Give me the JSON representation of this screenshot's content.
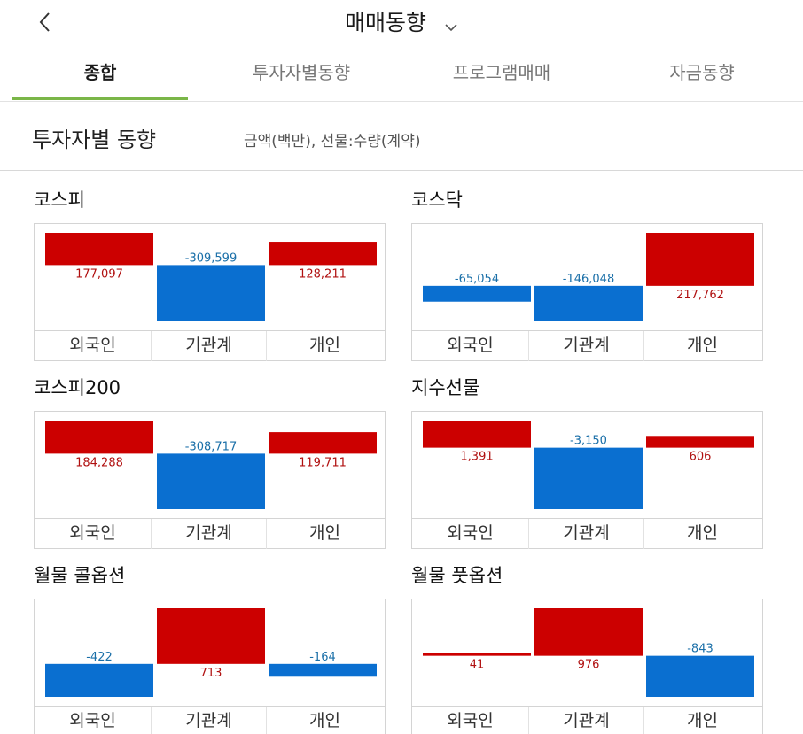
{
  "header": {
    "title": "매매동향"
  },
  "tabs": [
    {
      "label": "종합",
      "active": true
    },
    {
      "label": "투자자별동향",
      "active": false
    },
    {
      "label": "프로그램매매",
      "active": false
    },
    {
      "label": "자금동향",
      "active": false
    }
  ],
  "section": {
    "title": "투자자별 동향",
    "note": "금액(백만), 선물:수량(계약)"
  },
  "colors": {
    "positive": "#cc0000",
    "negative": "#0a6fd0",
    "positive_text": "#b01010",
    "negative_text": "#1a6fa8",
    "tab_accent": "#7ab648"
  },
  "panels": [
    {
      "title": "코스피",
      "chart_data": {
        "type": "bar",
        "categories": [
          "외국인",
          "기관계",
          "개인"
        ],
        "values": [
          177097,
          -309599,
          128211
        ],
        "labels": [
          "177,097",
          "-309,599",
          "128,211"
        ]
      }
    },
    {
      "title": "코스닥",
      "chart_data": {
        "type": "bar",
        "categories": [
          "외국인",
          "기관계",
          "개인"
        ],
        "values": [
          -65054,
          -146048,
          217762
        ],
        "labels": [
          "-65,054",
          "-146,048",
          "217,762"
        ]
      }
    },
    {
      "title": "코스피200",
      "chart_data": {
        "type": "bar",
        "categories": [
          "외국인",
          "기관계",
          "개인"
        ],
        "values": [
          184288,
          -308717,
          119711
        ],
        "labels": [
          "184,288",
          "-308,717",
          "119,711"
        ]
      }
    },
    {
      "title": "지수선물",
      "chart_data": {
        "type": "bar",
        "categories": [
          "외국인",
          "기관계",
          "개인"
        ],
        "values": [
          1391,
          -3150,
          606
        ],
        "labels": [
          "1,391",
          "-3,150",
          "606"
        ]
      }
    },
    {
      "title": "월물 콜옵션",
      "chart_data": {
        "type": "bar",
        "categories": [
          "외국인",
          "기관계",
          "개인"
        ],
        "values": [
          -422,
          713,
          -164
        ],
        "labels": [
          "-422",
          "713",
          "-164"
        ]
      }
    },
    {
      "title": "월물 풋옵션",
      "chart_data": {
        "type": "bar",
        "categories": [
          "외국인",
          "기관계",
          "개인"
        ],
        "values": [
          41,
          976,
          -843
        ],
        "labels": [
          "41",
          "976",
          "-843"
        ]
      }
    }
  ]
}
